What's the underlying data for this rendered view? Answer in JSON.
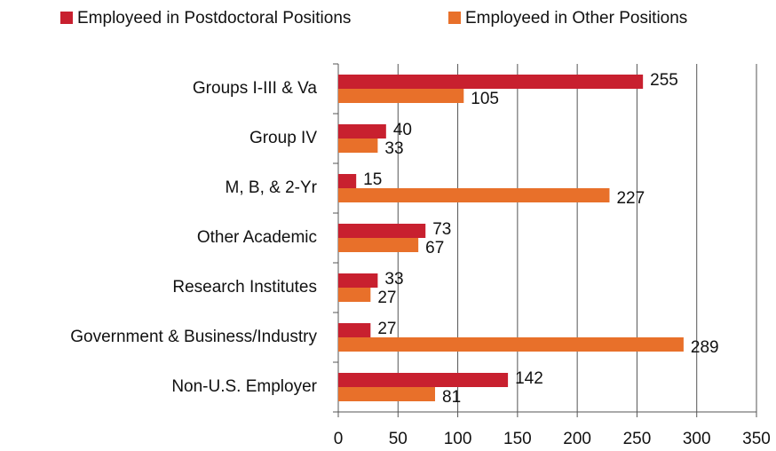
{
  "chart_data": {
    "type": "bar",
    "orientation": "horizontal",
    "categories": [
      "Groups I-III & Va",
      "Group IV",
      "M, B, & 2-Yr",
      "Other Academic",
      "Research Institutes",
      "Government & Business/Industry",
      "Non-U.S. Employer"
    ],
    "series": [
      {
        "name": "Employeed in Postdoctoral Positions",
        "color": "#c8202f",
        "values": [
          255,
          40,
          15,
          73,
          33,
          27,
          142
        ]
      },
      {
        "name": "Employeed in Other Positions",
        "color": "#e8702a",
        "values": [
          105,
          33,
          227,
          67,
          27,
          289,
          81
        ]
      }
    ],
    "xlim": [
      0,
      350
    ],
    "xticks": [
      0,
      50,
      100,
      150,
      200,
      250,
      300,
      350
    ],
    "grid": true,
    "legend": "top"
  }
}
